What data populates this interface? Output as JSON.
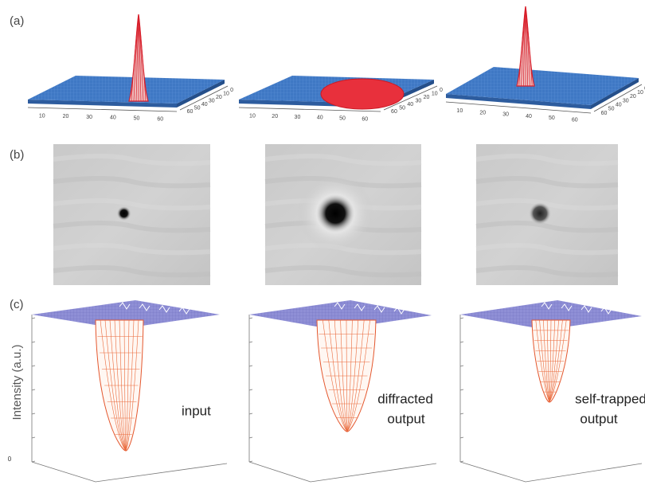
{
  "panel_labels": [
    "(a)",
    "(b)",
    "(c)"
  ],
  "row_a": {
    "x_tick_labels": [
      "10",
      "20",
      "30",
      "40",
      "50",
      "60"
    ],
    "y_tick_labels": [
      "0",
      "10",
      "20",
      "30",
      "40",
      "50",
      "60"
    ]
  },
  "row_c": {
    "y_axis_label": "Intensity (a.u.)",
    "y_zero_label": "0",
    "annotations": [
      [
        "input"
      ],
      [
        "diffracted",
        "output"
      ],
      [
        "self-trapped",
        "output"
      ]
    ]
  }
}
